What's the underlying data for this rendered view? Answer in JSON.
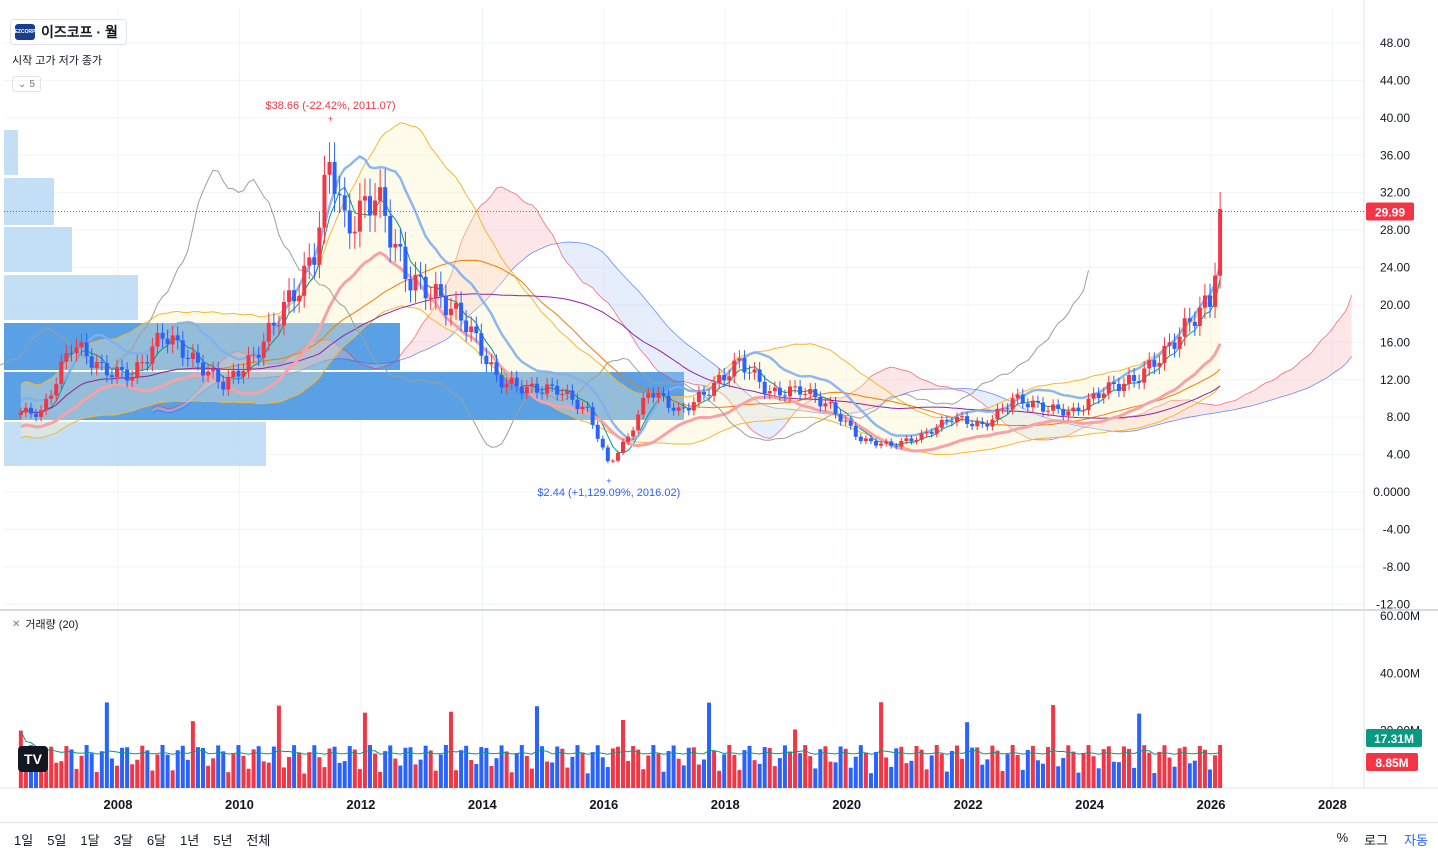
{
  "symbol": {
    "name": "이즈코프 · 월",
    "logo_text": "EZCORP"
  },
  "ohlc_label": "시작 고가 저가 종가",
  "indicator_toggle": {
    "icon": "chevron-down-icon",
    "count": "5"
  },
  "volume_legend": {
    "close_icon": "close-icon",
    "label": "거래량 (20)"
  },
  "tv_logo": "TV",
  "price_axis": {
    "ticks": [
      "48.00",
      "44.00",
      "40.00",
      "36.00",
      "32.00",
      "28.00",
      "24.00",
      "20.00",
      "16.00",
      "12.00",
      "8.00",
      "4.00",
      "0.0000",
      "-4.00",
      "-8.00",
      "-12.00"
    ],
    "current_price_label": "29.99",
    "current_price_color": "#f23645"
  },
  "volume_axis": {
    "ticks": [
      "60.00M",
      "40.00M",
      "20.00M"
    ],
    "ma_label": "17.31M",
    "ma_color": "#089981",
    "vol_label": "8.85M",
    "vol_color": "#f23645"
  },
  "time_axis": {
    "labels": [
      "2008",
      "2010",
      "2012",
      "2014",
      "2016",
      "2018",
      "2020",
      "2022",
      "2024",
      "2026",
      "2028"
    ]
  },
  "annotations": {
    "high": "$38.66 (-22.42%, 2011.07)",
    "low": "$2.44 (+1,129.09%, 2016.02)"
  },
  "colors": {
    "up": "#f23645",
    "down": "#2962ff",
    "cloud_red": "#f7b6bd",
    "cloud_blue": "#b6cdf7",
    "vp_light": "#b8d9f5",
    "vp_dark": "#3d8fe0"
  },
  "chart_data": {
    "type": "candlestick",
    "x": [
      "2006.10",
      "2007.04",
      "2007.10",
      "2008.04",
      "2008.10",
      "2009.04",
      "2009.10",
      "2010.04",
      "2010.10",
      "2011.01",
      "2011.04",
      "2011.07",
      "2011.10",
      "2012.04",
      "2012.10",
      "2013.04",
      "2013.10",
      "2014.04",
      "2014.10",
      "2015.04",
      "2015.10",
      "2016.02",
      "2016.06",
      "2016.10",
      "2017.04",
      "2017.10",
      "2018.04",
      "2018.10",
      "2019.04",
      "2019.10",
      "2020.04",
      "2020.10",
      "2021.04",
      "2021.10",
      "2022.04",
      "2022.10",
      "2023.04",
      "2023.10",
      "2024.04",
      "2024.10",
      "2025.04",
      "2025.10",
      "2026.01",
      "2026.03"
    ],
    "close": [
      8.5,
      16.0,
      13.0,
      12.5,
      17.0,
      14.0,
      11.5,
      14.5,
      20.0,
      22.0,
      26.0,
      36.0,
      28.0,
      32.0,
      23.0,
      21.0,
      18.0,
      12.0,
      11.0,
      11.0,
      8.5,
      2.9,
      6.0,
      11.0,
      8.5,
      11.0,
      14.0,
      10.5,
      11.0,
      9.0,
      5.5,
      5.0,
      6.0,
      8.0,
      7.0,
      10.0,
      9.0,
      8.5,
      11.0,
      12.0,
      15.0,
      19.0,
      20.5,
      29.99
    ],
    "high_annotation": {
      "value": 38.66,
      "date": "2011.07",
      "change": "-22.42%"
    },
    "low_annotation": {
      "value": 2.44,
      "date": "2016.02",
      "change": "+1,129.09%"
    },
    "ylim": [
      -12,
      50
    ],
    "volume_ylim": [
      0,
      60
    ]
  }
}
